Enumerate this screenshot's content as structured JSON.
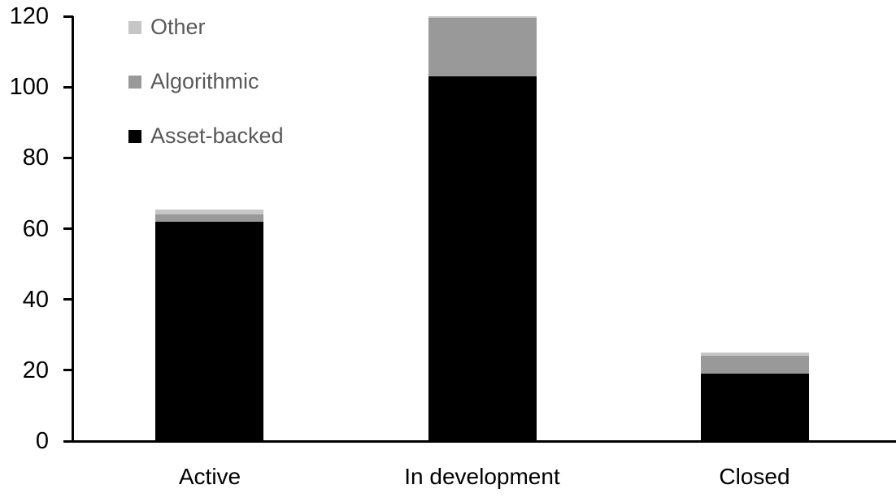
{
  "figure": {
    "background": "#FFFFFF",
    "axis_color": "#000000",
    "tick_label_color": "#000000",
    "legend_text_color": "#595959"
  },
  "legend": {
    "position": "top-left",
    "items": [
      {
        "label": "Other",
        "color": "#C6C6C6"
      },
      {
        "label": "Algorithmic",
        "color": "#999999"
      },
      {
        "label": "Asset-backed",
        "color": "#000000"
      }
    ]
  },
  "chart_data": {
    "type": "bar",
    "stacked": true,
    "title": "",
    "xlabel": "",
    "ylabel": "",
    "categories": [
      "Active",
      "In development",
      "Closed"
    ],
    "series": [
      {
        "name": "Asset-backed",
        "color": "#000000",
        "values": [
          62,
          103,
          19
        ]
      },
      {
        "name": "Algorithmic",
        "color": "#999999",
        "values": [
          2,
          16.5,
          5
        ]
      },
      {
        "name": "Other",
        "color": "#C6C6C6",
        "values": [
          1.5,
          0.5,
          1
        ]
      }
    ],
    "totals": [
      65.5,
      120,
      25
    ],
    "ylim": [
      0,
      120
    ],
    "ytick_step": 20,
    "ytick_labels": [
      "0",
      "20",
      "40",
      "60",
      "80",
      "100",
      "120"
    ],
    "grid": false,
    "legend_position": "top-left"
  }
}
